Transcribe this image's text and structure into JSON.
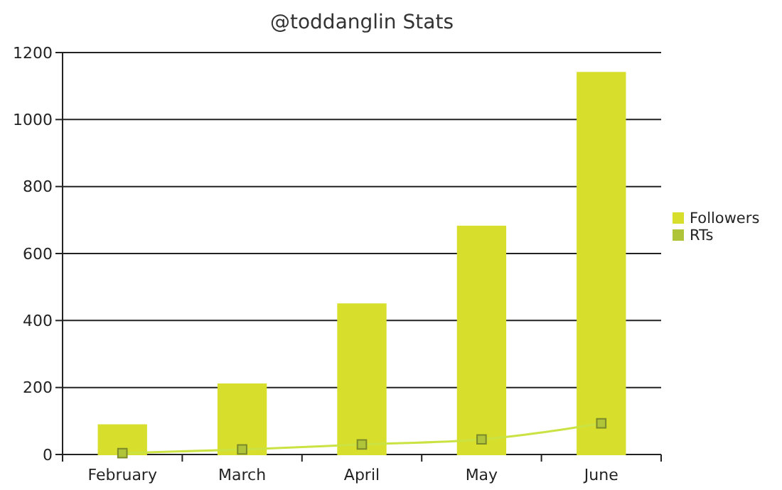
{
  "chart_data": {
    "type": "bar",
    "title": "@toddanglin Stats",
    "categories": [
      "February",
      "March",
      "April",
      "May",
      "June"
    ],
    "series": [
      {
        "name": "Followers",
        "color": "#d7df2c",
        "values": [
          88,
          210,
          449,
          681,
          1140
        ]
      },
      {
        "name": "RTs",
        "type": "line",
        "color": "#b0c43a",
        "values": [
          4,
          15,
          30,
          45,
          93
        ],
        "marker": "square"
      }
    ],
    "ylim": [
      0,
      1200
    ],
    "yticks": [
      0,
      200,
      400,
      600,
      800,
      1000,
      1200
    ],
    "grid": "y",
    "legend": "right"
  }
}
